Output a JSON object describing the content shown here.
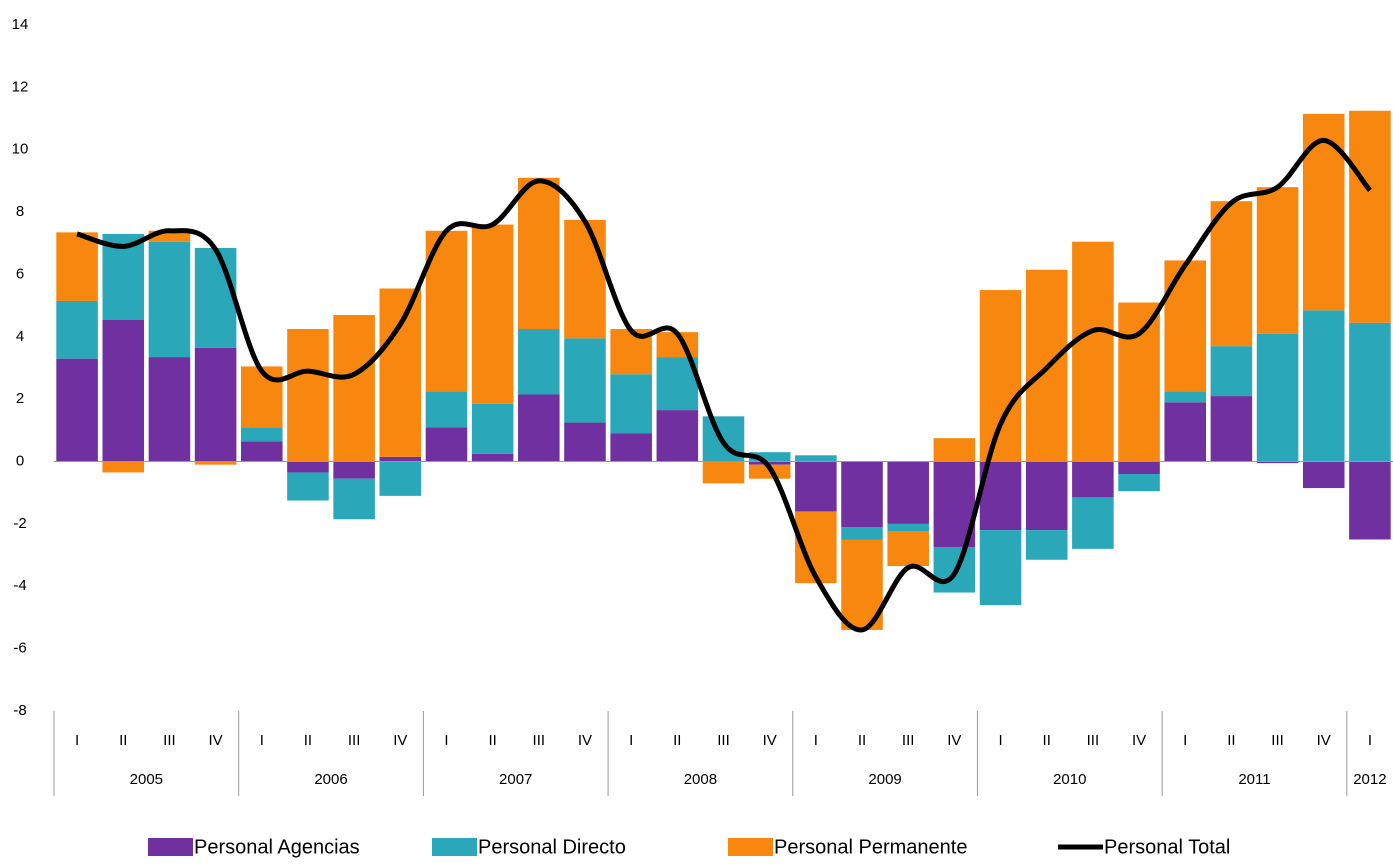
{
  "chart_data": {
    "type": "bar",
    "stacked": true,
    "categories": [
      "I",
      "II",
      "III",
      "IV",
      "I",
      "II",
      "III",
      "IV",
      "I",
      "II",
      "III",
      "IV",
      "I",
      "II",
      "III",
      "IV",
      "I",
      "II",
      "III",
      "IV",
      "I",
      "II",
      "III",
      "IV",
      "I",
      "II",
      "III",
      "IV",
      "I"
    ],
    "groups": [
      {
        "label": "2005",
        "size": 4
      },
      {
        "label": "2006",
        "size": 4
      },
      {
        "label": "2007",
        "size": 4
      },
      {
        "label": "2008",
        "size": 4
      },
      {
        "label": "2009",
        "size": 4
      },
      {
        "label": "2010",
        "size": 4
      },
      {
        "label": "2011",
        "size": 4
      },
      {
        "label": "2012",
        "size": 1
      }
    ],
    "ylim": [
      -8,
      14
    ],
    "yticks": [
      -8,
      -6,
      -4,
      -2,
      0,
      2,
      4,
      6,
      8,
      10,
      12,
      14
    ],
    "series": [
      {
        "name": "Personal Agencias",
        "color": "#7030a0",
        "values": [
          3.3,
          4.55,
          3.35,
          3.65,
          0.65,
          -0.35,
          -0.55,
          0.15,
          1.1,
          0.25,
          2.15,
          1.25,
          0.9,
          1.65,
          0,
          -0.1,
          -1.6,
          -2.1,
          -2.0,
          -2.75,
          -2.2,
          -2.2,
          -1.15,
          -0.4,
          1.9,
          2.1,
          -0.05,
          -0.85,
          -2.5
        ]
      },
      {
        "name": "Personal Directo",
        "color": "#2aa7b8",
        "values": [
          1.85,
          2.75,
          3.7,
          3.2,
          0.45,
          -0.9,
          -1.3,
          -1.1,
          1.15,
          1.6,
          2.1,
          2.7,
          1.9,
          1.7,
          1.45,
          0.3,
          0.2,
          -0.4,
          -0.25,
          -1.45,
          -2.4,
          -0.95,
          -1.65,
          -0.55,
          0.35,
          1.6,
          4.1,
          4.85,
          4.45
        ]
      },
      {
        "name": "Personal Permanente",
        "color": "#f7870f",
        "values": [
          2.2,
          -0.35,
          0.35,
          -0.1,
          1.95,
          4.25,
          4.7,
          5.4,
          5.15,
          5.75,
          4.85,
          3.8,
          1.45,
          0.8,
          -0.7,
          -0.45,
          -2.3,
          -2.9,
          -1.1,
          0.75,
          5.5,
          6.15,
          7.05,
          5.1,
          4.2,
          4.65,
          4.7,
          6.3,
          6.8
        ]
      },
      {
        "name": "Personal Total",
        "type": "line",
        "color": "#000000",
        "values": [
          7.3,
          6.9,
          7.4,
          6.8,
          2.9,
          2.9,
          2.8,
          4.4,
          7.4,
          7.6,
          9.0,
          7.7,
          4.2,
          4.1,
          0.6,
          -0.2,
          -3.7,
          -5.4,
          -3.4,
          -3.6,
          1.2,
          3.0,
          4.2,
          4.1,
          6.3,
          8.3,
          8.8,
          10.3,
          8.7
        ]
      }
    ]
  }
}
